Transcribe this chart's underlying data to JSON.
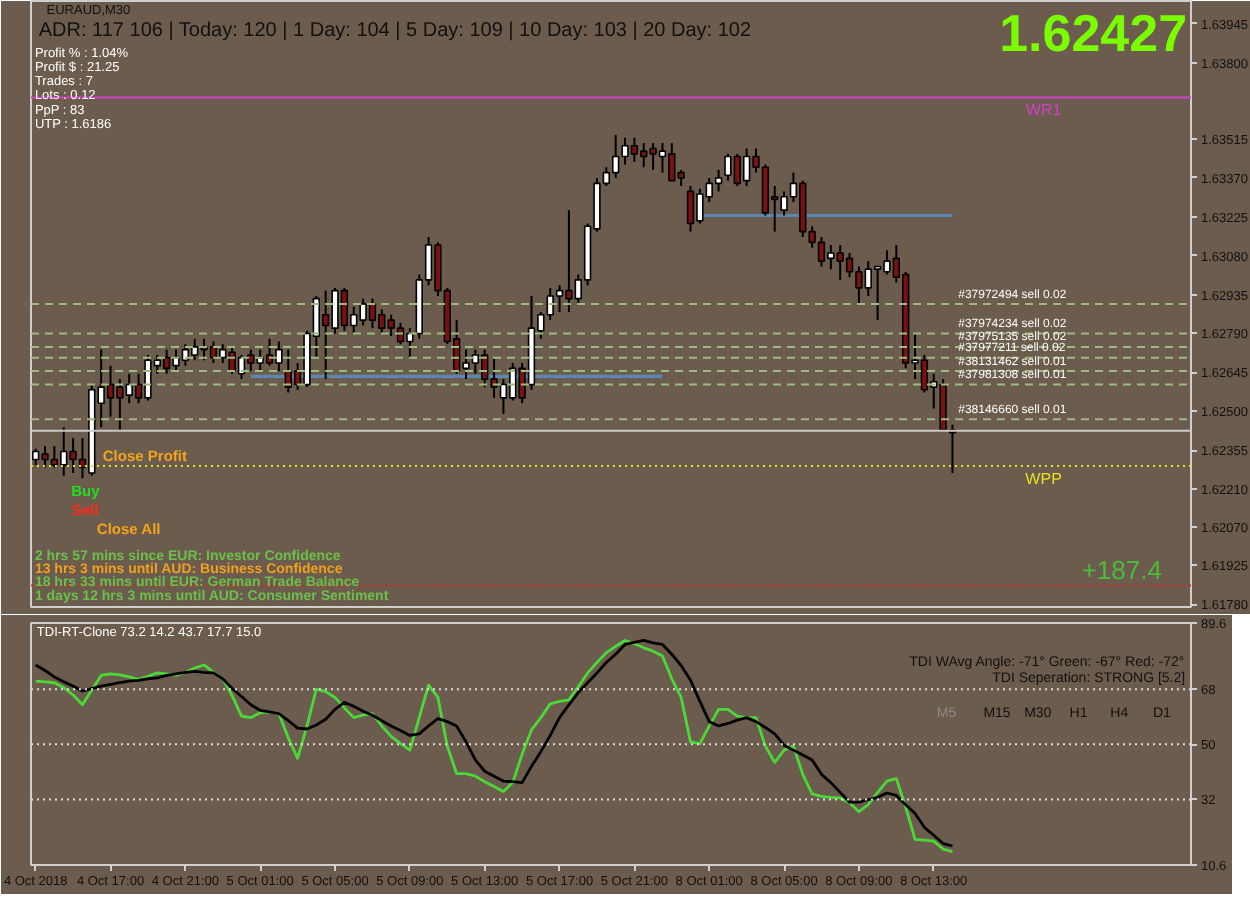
{
  "chart_data": [
    {
      "type": "candlestick",
      "title": "EURAUD,M30",
      "categories": [
        null,
        null,
        null,
        null,
        null,
        null,
        null,
        null,
        null,
        null,
        null,
        null,
        null,
        null,
        null,
        null,
        null,
        null,
        null,
        null,
        null,
        null,
        null,
        null,
        null,
        null,
        null,
        null,
        null,
        null,
        null,
        null,
        null,
        null,
        null,
        null,
        null,
        null,
        null,
        null,
        null,
        null,
        null,
        null,
        null,
        null,
        null,
        null,
        null,
        null,
        null,
        null,
        null,
        null,
        null,
        null,
        null,
        null,
        null,
        null,
        null,
        null,
        null,
        null,
        null,
        null,
        null,
        null,
        null,
        null,
        null,
        null,
        null,
        null,
        null,
        null,
        null,
        null,
        null,
        null,
        null,
        null,
        null,
        null,
        null,
        null,
        null,
        null,
        null,
        null,
        null,
        null,
        null,
        null,
        null,
        null,
        null,
        null,
        null,
        null,
        null,
        null,
        null,
        null,
        null,
        null,
        null,
        null,
        null,
        null,
        null,
        null,
        null,
        null,
        null,
        null,
        null,
        null,
        null,
        null,
        null,
        null,
        null,
        null
      ],
      "ohlc": [
        [
          1.6232,
          1.6236,
          1.623,
          1.6235
        ],
        [
          1.6234,
          1.6237,
          1.6229,
          1.6232
        ],
        [
          1.6232,
          1.6237,
          1.6229,
          1.623
        ],
        [
          1.623,
          1.6244,
          1.6226,
          1.6235
        ],
        [
          1.6235,
          1.624,
          1.6227,
          1.6232
        ],
        [
          1.6232,
          1.624,
          1.6225,
          1.6229
        ],
        [
          1.6227,
          1.626,
          1.6226,
          1.6258
        ],
        [
          1.6253,
          1.6273,
          1.6244,
          1.6259
        ],
        [
          1.626,
          1.6267,
          1.6248,
          1.6255
        ],
        [
          1.6259,
          1.6262,
          1.6243,
          1.6255
        ],
        [
          1.6256,
          1.6264,
          1.6253,
          1.626
        ],
        [
          1.626,
          1.6264,
          1.6253,
          1.6255
        ],
        [
          1.6255,
          1.6271,
          1.6254,
          1.6269
        ],
        [
          1.6267,
          1.6271,
          1.6264,
          1.6269
        ],
        [
          1.627,
          1.6273,
          1.6264,
          1.6266
        ],
        [
          1.6267,
          1.6273,
          1.6265,
          1.627
        ],
        [
          1.6269,
          1.6275,
          1.6267,
          1.6273
        ],
        [
          1.6271,
          1.6277,
          1.6269,
          1.6274
        ],
        [
          1.6274,
          1.6277,
          1.6269,
          1.6273
        ],
        [
          1.6274,
          1.6276,
          1.6268,
          1.627
        ],
        [
          1.627,
          1.6275,
          1.6268,
          1.6273
        ],
        [
          1.6272,
          1.6274,
          1.6264,
          1.6265
        ],
        [
          1.6264,
          1.6271,
          1.6262,
          1.627
        ],
        [
          1.6271,
          1.6273,
          1.6265,
          1.6268
        ],
        [
          1.6268,
          1.6273,
          1.6265,
          1.627
        ],
        [
          1.6271,
          1.6277,
          1.6267,
          1.6268
        ],
        [
          1.6268,
          1.6276,
          1.6265,
          1.6273
        ],
        [
          1.6265,
          1.6273,
          1.6257,
          1.6259
        ],
        [
          1.6265,
          1.6268,
          1.6258,
          1.626
        ],
        [
          1.626,
          1.628,
          1.6259,
          1.6279
        ],
        [
          1.6278,
          1.6293,
          1.627,
          1.6292
        ],
        [
          1.6286,
          1.6295,
          1.6262,
          1.6282
        ],
        [
          1.6281,
          1.6296,
          1.6279,
          1.6295
        ],
        [
          1.6295,
          1.6296,
          1.628,
          1.6282
        ],
        [
          1.6282,
          1.6289,
          1.6279,
          1.6286
        ],
        [
          1.6284,
          1.6292,
          1.6282,
          1.629
        ],
        [
          1.629,
          1.6292,
          1.6281,
          1.6284
        ],
        [
          1.6286,
          1.6288,
          1.6279,
          1.6281
        ],
        [
          1.6284,
          1.6286,
          1.6278,
          1.6281
        ],
        [
          1.6281,
          1.6283,
          1.6275,
          1.6276
        ],
        [
          1.6276,
          1.6281,
          1.627,
          1.6279
        ],
        [
          1.6279,
          1.6301,
          1.6277,
          1.6299
        ],
        [
          1.6299,
          1.6315,
          1.6297,
          1.6312
        ],
        [
          1.6312,
          1.6313,
          1.6293,
          1.6295
        ],
        [
          1.6295,
          1.6296,
          1.6275,
          1.6276
        ],
        [
          1.6277,
          1.6284,
          1.6264,
          1.6265
        ],
        [
          1.6266,
          1.6273,
          1.6262,
          1.6268
        ],
        [
          1.6268,
          1.6273,
          1.6264,
          1.6271
        ],
        [
          1.6271,
          1.6273,
          1.6259,
          1.6262
        ],
        [
          1.6262,
          1.627,
          1.6255,
          1.6259
        ],
        [
          1.6255,
          1.6262,
          1.6249,
          1.626
        ],
        [
          1.6255,
          1.6268,
          1.6254,
          1.6266
        ],
        [
          1.6266,
          1.6268,
          1.6253,
          1.6255
        ],
        [
          1.626,
          1.6293,
          1.6258,
          1.6281
        ],
        [
          1.628,
          1.6287,
          1.6277,
          1.6286
        ],
        [
          1.6286,
          1.6296,
          1.6284,
          1.6293
        ],
        [
          1.6293,
          1.6297,
          1.6287,
          1.6295
        ],
        [
          1.6295,
          1.6325,
          1.6287,
          1.6292
        ],
        [
          1.6292,
          1.6301,
          1.629,
          1.6299
        ],
        [
          1.6299,
          1.632,
          1.6297,
          1.6319
        ],
        [
          1.6318,
          1.6337,
          1.6317,
          1.6335
        ],
        [
          1.6335,
          1.6341,
          1.6334,
          1.6339
        ],
        [
          1.6339,
          1.6353,
          1.6337,
          1.6345
        ],
        [
          1.6345,
          1.6352,
          1.6342,
          1.6349
        ],
        [
          1.6349,
          1.6352,
          1.6343,
          1.6346
        ],
        [
          1.6347,
          1.635,
          1.6341,
          1.6345
        ],
        [
          1.6348,
          1.635,
          1.634,
          1.6346
        ],
        [
          1.6345,
          1.635,
          1.6339,
          1.6347
        ],
        [
          1.6346,
          1.635,
          1.6336,
          1.6336
        ],
        [
          1.6339,
          1.634,
          1.6334,
          1.6337
        ],
        [
          1.6332,
          1.6334,
          1.6317,
          1.632
        ],
        [
          1.6321,
          1.6333,
          1.632,
          1.6331
        ],
        [
          1.633,
          1.6337,
          1.6328,
          1.6335
        ],
        [
          1.6335,
          1.634,
          1.6332,
          1.6337
        ],
        [
          1.6338,
          1.6346,
          1.6336,
          1.6345
        ],
        [
          1.6345,
          1.6346,
          1.6334,
          1.6335
        ],
        [
          1.6336,
          1.6348,
          1.6334,
          1.6345
        ],
        [
          1.6345,
          1.6348,
          1.6339,
          1.6341
        ],
        [
          1.6341,
          1.6342,
          1.6323,
          1.6324
        ],
        [
          1.633,
          1.6334,
          1.6317,
          1.6329
        ],
        [
          1.6325,
          1.6332,
          1.6323,
          1.633
        ],
        [
          1.633,
          1.6339,
          1.6328,
          1.6335
        ],
        [
          1.6335,
          1.6336,
          1.6315,
          1.6317
        ],
        [
          1.6317,
          1.6319,
          1.6311,
          1.6313
        ],
        [
          1.6313,
          1.6315,
          1.6304,
          1.6306
        ],
        [
          1.6307,
          1.6312,
          1.6303,
          1.6309
        ],
        [
          1.6309,
          1.6312,
          1.6299,
          1.6306
        ],
        [
          1.6307,
          1.6309,
          1.63,
          1.6302
        ],
        [
          1.6302,
          1.6304,
          1.629,
          1.6296
        ],
        [
          1.6296,
          1.6306,
          1.6293,
          1.6303
        ],
        [
          1.6303,
          1.6304,
          1.6284,
          1.6304
        ],
        [
          1.6302,
          1.631,
          1.6301,
          1.6306
        ],
        [
          1.6307,
          1.6312,
          1.6298,
          1.63
        ],
        [
          1.6301,
          1.6302,
          1.6266,
          1.6268
        ],
        [
          1.6268,
          1.6279,
          1.6262,
          1.6269
        ],
        [
          1.6269,
          1.6271,
          1.6257,
          1.6258
        ],
        [
          1.6259,
          1.6264,
          1.6251,
          1.6261
        ],
        [
          1.626,
          1.6262,
          1.6243,
          1.6243
        ],
        [
          1.6243,
          1.6245,
          1.6227,
          1.6242
        ],
        null,
        null,
        null,
        null,
        null,
        null,
        null,
        null,
        null,
        null,
        null,
        null,
        null,
        null,
        null,
        null,
        null,
        null,
        null,
        null,
        null,
        null,
        null,
        null,
        null
      ],
      "series": [
        {
          "type": "line",
          "color": "#5b87b0",
          "values": [
            null,
            null,
            null,
            null,
            null,
            null,
            null,
            null,
            null,
            null,
            null,
            null,
            null,
            null,
            null,
            null,
            null,
            null,
            null,
            null,
            null,
            null,
            null,
            1.6263,
            1.6263,
            1.6263,
            1.6263,
            1.6263,
            1.6263,
            1.6263,
            1.6263,
            1.6263,
            1.6263,
            1.6263,
            1.6263,
            1.6263,
            1.6263,
            1.6263,
            1.6263,
            1.6263,
            1.6263,
            1.6263,
            1.6263,
            1.6263,
            1.6263,
            1.6263,
            1.6263,
            1.6263,
            1.6263,
            1.6263,
            1.6263,
            1.6263,
            1.6263,
            1.6263,
            1.6263,
            1.6263,
            1.6263,
            1.6263,
            1.6263,
            1.6263,
            1.6263,
            1.6263,
            1.6263,
            1.6263,
            1.6263,
            1.6263,
            1.6263,
            1.6263,
            null,
            null,
            null,
            null,
            null,
            null,
            null,
            null,
            null,
            null,
            null,
            null,
            null,
            null,
            null,
            null,
            null,
            null,
            null,
            null,
            null,
            null,
            null,
            null,
            null,
            null,
            null,
            null,
            null,
            null,
            null,
            null,
            null,
            null,
            null,
            null,
            null,
            null,
            null,
            null,
            null,
            null,
            null,
            null,
            null,
            null,
            null,
            null,
            null,
            null,
            null,
            null,
            null,
            null,
            null,
            null
          ]
        },
        {
          "type": "line",
          "color": "#5b87b0",
          "values": [
            null,
            null,
            null,
            null,
            null,
            null,
            null,
            null,
            null,
            null,
            null,
            null,
            null,
            null,
            null,
            null,
            null,
            null,
            null,
            null,
            null,
            null,
            null,
            null,
            null,
            null,
            null,
            null,
            null,
            null,
            null,
            null,
            null,
            null,
            null,
            null,
            null,
            null,
            null,
            null,
            null,
            null,
            null,
            null,
            null,
            null,
            null,
            null,
            null,
            null,
            null,
            null,
            null,
            null,
            null,
            null,
            null,
            null,
            null,
            null,
            null,
            null,
            null,
            null,
            null,
            null,
            null,
            null,
            null,
            null,
            null,
            1.6323,
            1.6323,
            1.6323,
            1.6323,
            1.6323,
            1.6323,
            1.6323,
            1.6323,
            1.6323,
            1.6323,
            1.6323,
            1.6323,
            1.6323,
            1.6323,
            1.6323,
            1.6323,
            1.6323,
            1.6323,
            1.6323,
            1.6323,
            1.6323,
            1.6323,
            1.6323,
            1.6323,
            1.6323,
            1.6323,
            1.6323,
            1.6323,
            null,
            null,
            null,
            null,
            null,
            null,
            null,
            null,
            null,
            null,
            null,
            null,
            null,
            null,
            null,
            null,
            null,
            null,
            null,
            null,
            null,
            null,
            null,
            null,
            null
          ]
        }
      ],
      "ylim": [
        1.6177,
        1.6403
      ],
      "yticks": [
        1.63945,
        {
          "value": 1.638,
          "label": "1.63800"
        },
        1.63515,
        {
          "value": 1.6337,
          "label": "1.63370"
        },
        1.63225,
        {
          "value": 1.6308,
          "label": "1.63080"
        },
        1.62935,
        {
          "value": 1.6279,
          "label": "1.62790"
        },
        1.62645,
        {
          "value": 1.625,
          "label": "1.62500"
        },
        1.62355,
        {
          "value": 1.6221,
          "label": "1.62210"
        },
        {
          "value": 1.6207,
          "label": "1.62070"
        },
        1.61925,
        {
          "value": 1.6178,
          "label": "1.61780"
        }
      ],
      "grid": false,
      "ref_lines": [
        {
          "axis": "y",
          "value": 1.6367,
          "label": "WR1",
          "color": "#d040c8",
          "line_style": "solid"
        },
        {
          "axis": "y",
          "value": 1.629,
          "label": "#37972494 sell 0.02",
          "color": "#9dbb7d",
          "line_style": "dashed"
        },
        {
          "axis": "y",
          "value": 1.6279,
          "label": "#37974234 sell 0.02",
          "color": "#9dbb7d",
          "line_style": "dashed"
        },
        {
          "axis": "y",
          "value": 1.6274,
          "label": "#37975135 sell 0.02",
          "color": "#9dbb7d",
          "line_style": "dashed"
        },
        {
          "axis": "y",
          "value": 1.627,
          "label": "#37977211 sell 0.02",
          "color": "#9dbb7d",
          "line_style": "dashed"
        },
        {
          "axis": "y",
          "value": 1.6265,
          "label": "#38131462 sell 0.01",
          "color": "#9dbb7d",
          "line_style": "dashed"
        },
        {
          "axis": "y",
          "value": 1.626,
          "label": "#37981308 sell 0.01",
          "color": "#9dbb7d",
          "line_style": "dashed"
        },
        {
          "axis": "y",
          "value": 1.6247,
          "label": "#38146660 sell 0.01",
          "color": "#9dbb7d",
          "line_style": "dashed"
        },
        {
          "axis": "y",
          "value": 1.62427,
          "color": "#c8c8c8",
          "line_style": "solid"
        },
        {
          "axis": "y",
          "value": 1.62296,
          "label": "WPP",
          "color": "#e8e020",
          "line_style": "dotted"
        },
        {
          "axis": "y",
          "value": 1.6185,
          "color": "#e02020",
          "line_style": "dotted"
        }
      ],
      "annotations": [
        "ADR: 117 106 | Today: 120 | 1 Day: 104 | 5 Day: 109 | 10 Day: 103 | 20 Day: 102",
        "Profit % : 1.04%",
        "Profit $ : 21.25",
        "Trades : 7",
        "Lots : 0.12",
        "PpP : 83",
        "UTP : 1.6186",
        "1.62427",
        "+187.4",
        "Close Profit",
        "Buy",
        "Sell",
        "Close All",
        "2 hrs 57 mins since EUR: Investor Confidence",
        "13 hrs 3 mins until AUD: Business Confidence",
        "18 hrs 33 mins until EUR: German Trade Balance",
        "1 days 12 hrs 3 mins until AUD: Consumer Sentiment"
      ]
    },
    {
      "type": "line",
      "title": "TDI-RT-Clone 73.2 14.2 43.7 17.7 15.0",
      "categories": [
        "4 Oct 2018",
        null,
        null,
        null,
        null,
        null,
        null,
        null,
        "4 Oct 17:00",
        null,
        null,
        null,
        null,
        null,
        null,
        null,
        "4 Oct 21:00",
        null,
        null,
        null,
        null,
        null,
        null,
        null,
        "5 Oct 01:00",
        null,
        null,
        null,
        null,
        null,
        null,
        null,
        "5 Oct 05:00",
        null,
        null,
        null,
        null,
        null,
        null,
        null,
        "5 Oct 09:00",
        null,
        null,
        null,
        null,
        null,
        null,
        null,
        "5 Oct 13:00",
        null,
        null,
        null,
        null,
        null,
        null,
        null,
        "5 Oct 17:00",
        null,
        null,
        null,
        null,
        null,
        null,
        null,
        "5 Oct 21:00",
        null,
        null,
        null,
        null,
        null,
        null,
        null,
        "8 Oct 01:00",
        null,
        null,
        null,
        null,
        null,
        null,
        null,
        "8 Oct 05:00",
        null,
        null,
        null,
        null,
        null,
        null,
        null,
        "8 Oct 09:00",
        null,
        null,
        null,
        null,
        null,
        null,
        null,
        "8 Oct 13:00",
        null,
        null,
        null,
        null,
        null,
        null,
        null,
        null,
        null,
        null,
        null,
        null,
        null,
        null,
        null,
        null,
        null,
        null,
        null,
        null,
        null,
        null,
        null,
        null,
        null,
        null,
        null
      ],
      "series": [
        {
          "color": "#4cd837",
          "values": [
            70.6,
            70.4,
            70.1,
            68.5,
            66.1,
            62.9,
            67.7,
            72.5,
            73.0,
            72.7,
            72.0,
            71.2,
            72.2,
            73.3,
            73.0,
            72.5,
            73.5,
            74.9,
            75.9,
            73.5,
            71.4,
            65.9,
            59.2,
            58.7,
            60.3,
            60.6,
            60.0,
            52.1,
            45.4,
            56.0,
            68.0,
            67.2,
            65.3,
            61.9,
            58.7,
            59.5,
            60.0,
            56.0,
            52.6,
            50.2,
            48.1,
            58.7,
            69.3,
            65.3,
            49.4,
            40.4,
            40.4,
            39.6,
            37.8,
            36.2,
            34.6,
            37.5,
            46.8,
            54.7,
            58.7,
            63.2,
            64.0,
            64.5,
            68.8,
            73.3,
            76.7,
            79.9,
            82.0,
            83.9,
            82.8,
            81.5,
            80.4,
            78.8,
            71.4,
            65.3,
            50.8,
            50.2,
            56.0,
            61.4,
            61.4,
            59.2,
            58.7,
            58.7,
            49.4,
            44.1,
            48.1,
            49.4,
            40.2,
            33.8,
            33.0,
            32.7,
            32.5,
            30.9,
            28.0,
            30.3,
            34.3,
            38.0,
            38.8,
            29.6,
            19.0,
            18.7,
            18.4,
            15.8,
            15.0,
            null,
            null,
            null,
            null,
            null,
            null,
            null,
            null,
            null,
            null,
            null,
            null,
            null,
            null,
            null,
            null,
            null,
            null,
            null,
            null,
            null,
            null,
            null,
            null,
            null
          ]
        },
        {
          "color": "#000000",
          "values": [
            75.9,
            74.1,
            72.0,
            70.4,
            69.0,
            67.4,
            68.2,
            69.0,
            69.6,
            70.1,
            70.6,
            70.9,
            71.4,
            71.7,
            72.5,
            73.0,
            73.5,
            73.8,
            73.5,
            73.3,
            71.4,
            68.2,
            65.6,
            62.9,
            61.1,
            60.6,
            60.0,
            57.7,
            55.3,
            55.0,
            56.3,
            58.2,
            61.4,
            63.7,
            62.4,
            60.8,
            59.5,
            57.7,
            56.0,
            54.5,
            52.9,
            53.4,
            56.0,
            58.4,
            57.4,
            56.0,
            50.8,
            44.9,
            41.2,
            39.6,
            38.0,
            37.8,
            37.5,
            42.8,
            47.6,
            52.9,
            58.7,
            62.9,
            66.9,
            70.1,
            73.3,
            76.7,
            79.4,
            82.6,
            83.3,
            83.9,
            83.1,
            82.6,
            79.4,
            75.7,
            70.9,
            64.0,
            57.4,
            56.0,
            56.8,
            57.9,
            58.7,
            57.4,
            55.5,
            53.4,
            49.7,
            48.1,
            46.5,
            44.9,
            40.2,
            37.5,
            34.3,
            31.1,
            31.1,
            31.9,
            32.7,
            34.1,
            33.3,
            30.3,
            27.4,
            22.9,
            20.3,
            17.6,
            16.8,
            null,
            null,
            null,
            null,
            null,
            null,
            null,
            null,
            null,
            null,
            null,
            null,
            null,
            null,
            null,
            null,
            null,
            null,
            null,
            null,
            null,
            null,
            null,
            null,
            null
          ]
        }
      ],
      "ylim": [
        10.6,
        89.6
      ],
      "yticks": [
        89.6,
        68,
        50,
        32,
        10.6
      ],
      "grid": false,
      "ref_lines": [
        {
          "axis": "y",
          "value": 68,
          "color": "#dedede",
          "line_style": "dotted"
        },
        {
          "axis": "y",
          "value": 50,
          "color": "#dedede",
          "line_style": "dotted"
        },
        {
          "axis": "y",
          "value": 32,
          "color": "#dedede",
          "line_style": "dotted"
        }
      ],
      "annotations": [
        "TDI WAvg Angle: -71° Green: -67° Red: -72°",
        "TDI Seperation: STRONG [5.2]",
        "M5",
        "M15",
        "M30",
        "H1",
        "H4",
        "D1"
      ]
    }
  ]
}
